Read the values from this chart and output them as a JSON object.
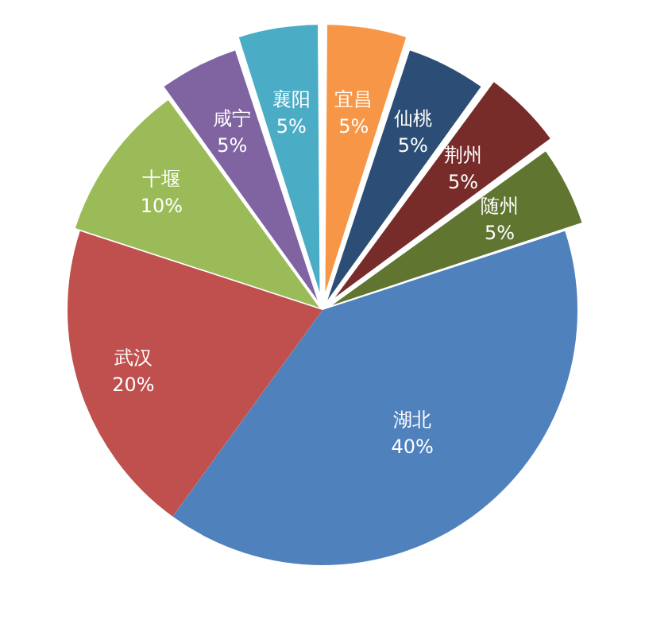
{
  "chart_data": {
    "type": "pie",
    "categories": [
      "宜昌",
      "仙桃",
      "荆州",
      "随州",
      "湖北",
      "武汉",
      "十堰",
      "咸宁",
      "襄阳"
    ],
    "values": [
      5,
      5,
      5,
      5,
      40,
      20,
      10,
      5,
      5
    ],
    "colors": [
      "#f79646",
      "#2c4d75",
      "#772c2a",
      "#5f7530",
      "#4f81bd",
      "#c0504d",
      "#9bbb59",
      "#8064a2",
      "#4bacc6"
    ],
    "value_labels": [
      "5%",
      "5%",
      "5%",
      "5%",
      "40%",
      "20%",
      "10%",
      "5%",
      "5%"
    ],
    "legend": false
  }
}
